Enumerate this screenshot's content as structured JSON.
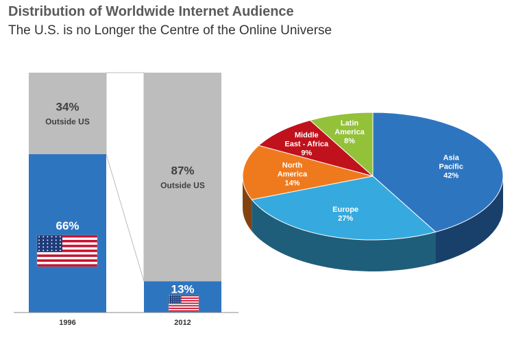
{
  "title": "Distribution of Worldwide Internet Audience",
  "subtitle": "The U.S. is no Longer the Centre of the Online Universe",
  "chart_data": [
    {
      "type": "bar",
      "stacked": true,
      "categories": [
        "1996",
        "2012"
      ],
      "series": [
        {
          "values": [
            66,
            13
          ],
          "labels": [
            "66%",
            "13%"
          ],
          "color": "#2e75c0"
        },
        {
          "values": [
            34,
            87
          ],
          "labels": [
            "34%",
            "87%"
          ],
          "sublabel": "Outside US",
          "color": "#bdbdbd"
        }
      ],
      "ylim": [
        0,
        100
      ]
    },
    {
      "type": "pie",
      "slices": [
        {
          "label": "Asia Pacific",
          "lines": [
            "Asia",
            "Pacific"
          ],
          "value": 42,
          "text": "42%",
          "color": "#2e75c0"
        },
        {
          "label": "Europe",
          "lines": [
            "Europe"
          ],
          "value": 27,
          "text": "27%",
          "color": "#36aade"
        },
        {
          "label": "North America",
          "lines": [
            "North",
            "America"
          ],
          "value": 14,
          "text": "14%",
          "color": "#ef7a1e"
        },
        {
          "label": "Middle East - Africa",
          "lines": [
            "Middle",
            "East - Africa"
          ],
          "value": 9,
          "text": "9%",
          "color": "#c0121c"
        },
        {
          "label": "Latin America",
          "lines": [
            "Latin",
            "America"
          ],
          "value": 8,
          "text": "8%",
          "color": "#94c13a"
        }
      ]
    }
  ]
}
